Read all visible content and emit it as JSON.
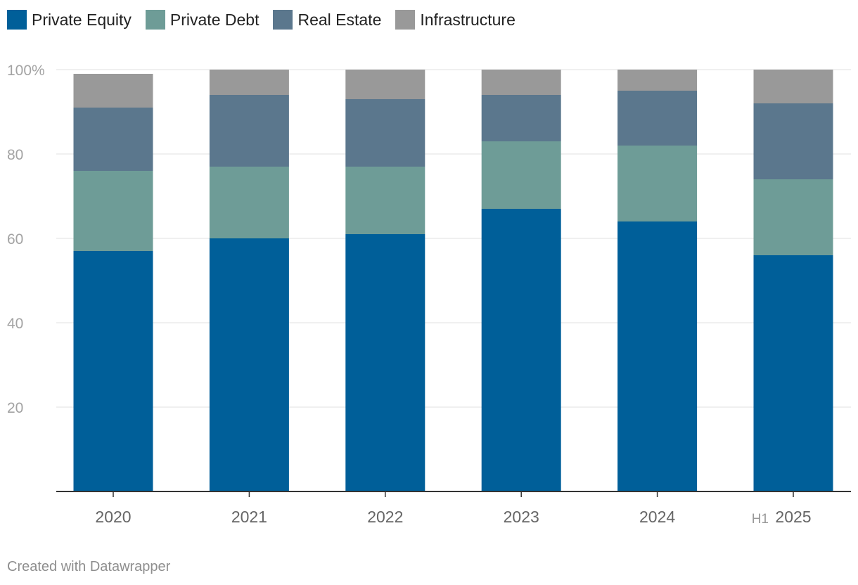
{
  "chart_data": {
    "type": "bar",
    "stacked": true,
    "categories": [
      {
        "prefix": "",
        "label": "2020"
      },
      {
        "prefix": "",
        "label": "2021"
      },
      {
        "prefix": "",
        "label": "2022"
      },
      {
        "prefix": "",
        "label": "2023"
      },
      {
        "prefix": "",
        "label": "2024"
      },
      {
        "prefix": "H1",
        "label": "2025"
      }
    ],
    "series": [
      {
        "name": "Private Equity",
        "color": "#005f99",
        "values": [
          57,
          60,
          61,
          67,
          64,
          56
        ]
      },
      {
        "name": "Private Debt",
        "color": "#6e9c97",
        "values": [
          19,
          17,
          16,
          16,
          18,
          18
        ]
      },
      {
        "name": "Real Estate",
        "color": "#5b778d",
        "values": [
          15,
          17,
          16,
          11,
          13,
          18
        ]
      },
      {
        "name": "Infrastructure",
        "color": "#999999",
        "values": [
          8,
          6,
          7,
          6,
          5,
          8
        ]
      }
    ],
    "ylim": [
      0,
      100
    ],
    "yticks": [
      20,
      40,
      60,
      80,
      100
    ],
    "ytick_labels": [
      "20",
      "40",
      "60",
      "80",
      "100%"
    ],
    "legend_position": "top-left",
    "grid": true,
    "title": "",
    "xlabel": "",
    "ylabel": ""
  },
  "footer": {
    "credit": "Created with Datawrapper"
  }
}
